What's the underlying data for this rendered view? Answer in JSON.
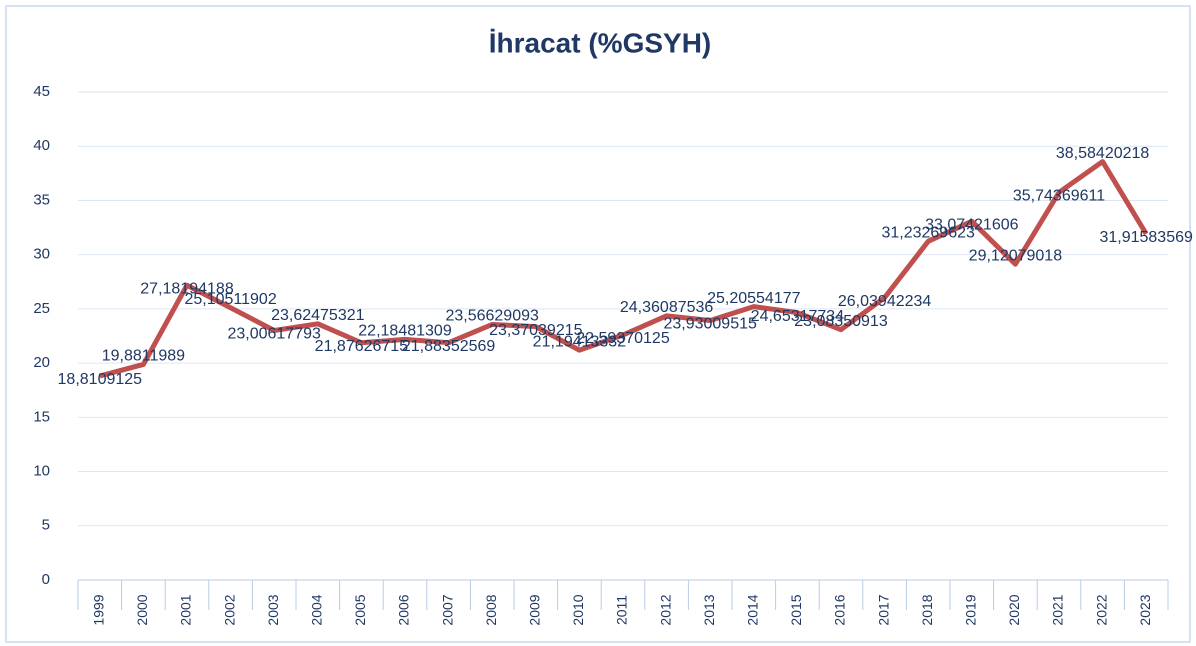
{
  "chart_data": {
    "type": "line",
    "title": "İhracat (%GSYH)",
    "categories": [
      "1999",
      "2000",
      "2001",
      "2002",
      "2003",
      "2004",
      "2005",
      "2006",
      "2007",
      "2008",
      "2009",
      "2010",
      "2011",
      "2012",
      "2013",
      "2014",
      "2015",
      "2016",
      "2017",
      "2018",
      "2019",
      "2020",
      "2021",
      "2022",
      "2023"
    ],
    "series": [
      {
        "name": "İhracat (%GSYH)",
        "color": "#c0504d",
        "values": [
          18.8109125,
          19.8811989,
          27.18194188,
          25.10511902,
          23.00617793,
          23.62475321,
          21.87626715,
          22.18481309,
          21.88352569,
          23.56629093,
          23.37039215,
          21.19413332,
          22.59370125,
          24.36087536,
          23.93009515,
          25.20554177,
          24.65317734,
          23.08350913,
          26.03942234,
          31.23269623,
          33.07421606,
          29.12079018,
          35.74369611,
          38.58420218,
          31.91583569
        ],
        "value_labels": [
          "18,8109125",
          "19,8811989",
          "27,18194188",
          "25,10511902",
          "23,00617793",
          "23,62475321",
          "21,87626715",
          "22,18481309",
          "21,88352569",
          "23,56629093",
          "23,37039215",
          "21,19413332",
          "22,59370125",
          "24,36087536",
          "23,93009515",
          "25,20554177",
          "24,65317734",
          "23,08350913",
          "26,03942234",
          "31,23269623",
          "33,07421606",
          "29,12079018",
          "35,74369611",
          "38,58420218",
          "31,91583569"
        ]
      }
    ],
    "ylim": [
      0,
      45
    ],
    "yticks": [
      0,
      5,
      10,
      15,
      20,
      25,
      30,
      35,
      40,
      45
    ],
    "grid": true
  }
}
